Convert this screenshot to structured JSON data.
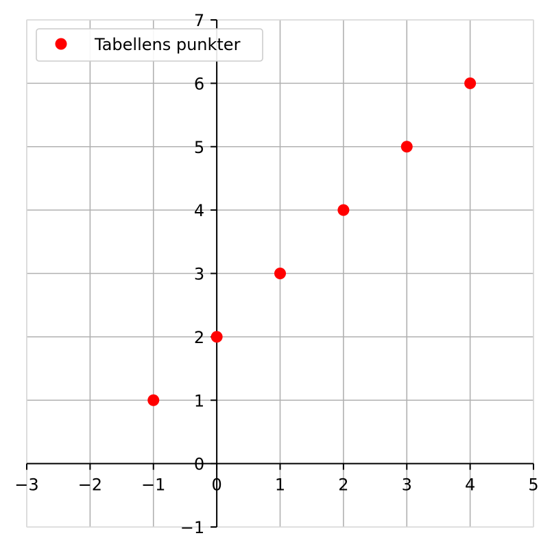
{
  "chart_data": {
    "type": "scatter",
    "series": [
      {
        "name": "Tabellens punkter",
        "color": "#ff0000",
        "marker": "circle",
        "points": [
          {
            "x": -1,
            "y": 1
          },
          {
            "x": 0,
            "y": 2
          },
          {
            "x": 1,
            "y": 3
          },
          {
            "x": 2,
            "y": 4
          },
          {
            "x": 3,
            "y": 5
          },
          {
            "x": 4,
            "y": 6
          }
        ]
      }
    ],
    "xlim": [
      -3,
      5
    ],
    "ylim": [
      -1,
      7
    ],
    "xticks": [
      -3,
      -2,
      -1,
      0,
      1,
      2,
      3,
      4,
      5
    ],
    "yticks": [
      -1,
      0,
      1,
      2,
      3,
      4,
      5,
      6,
      7
    ],
    "xtick_labels": [
      "−3",
      "−2",
      "−1",
      "0",
      "1",
      "2",
      "3",
      "4",
      "5"
    ],
    "ytick_labels": [
      "−1",
      "0",
      "1",
      "2",
      "3",
      "4",
      "5",
      "6",
      "7"
    ],
    "grid": true,
    "axes_through_origin": true,
    "legend": {
      "position": "top-left",
      "entries": [
        "Tabellens punkter"
      ]
    }
  }
}
